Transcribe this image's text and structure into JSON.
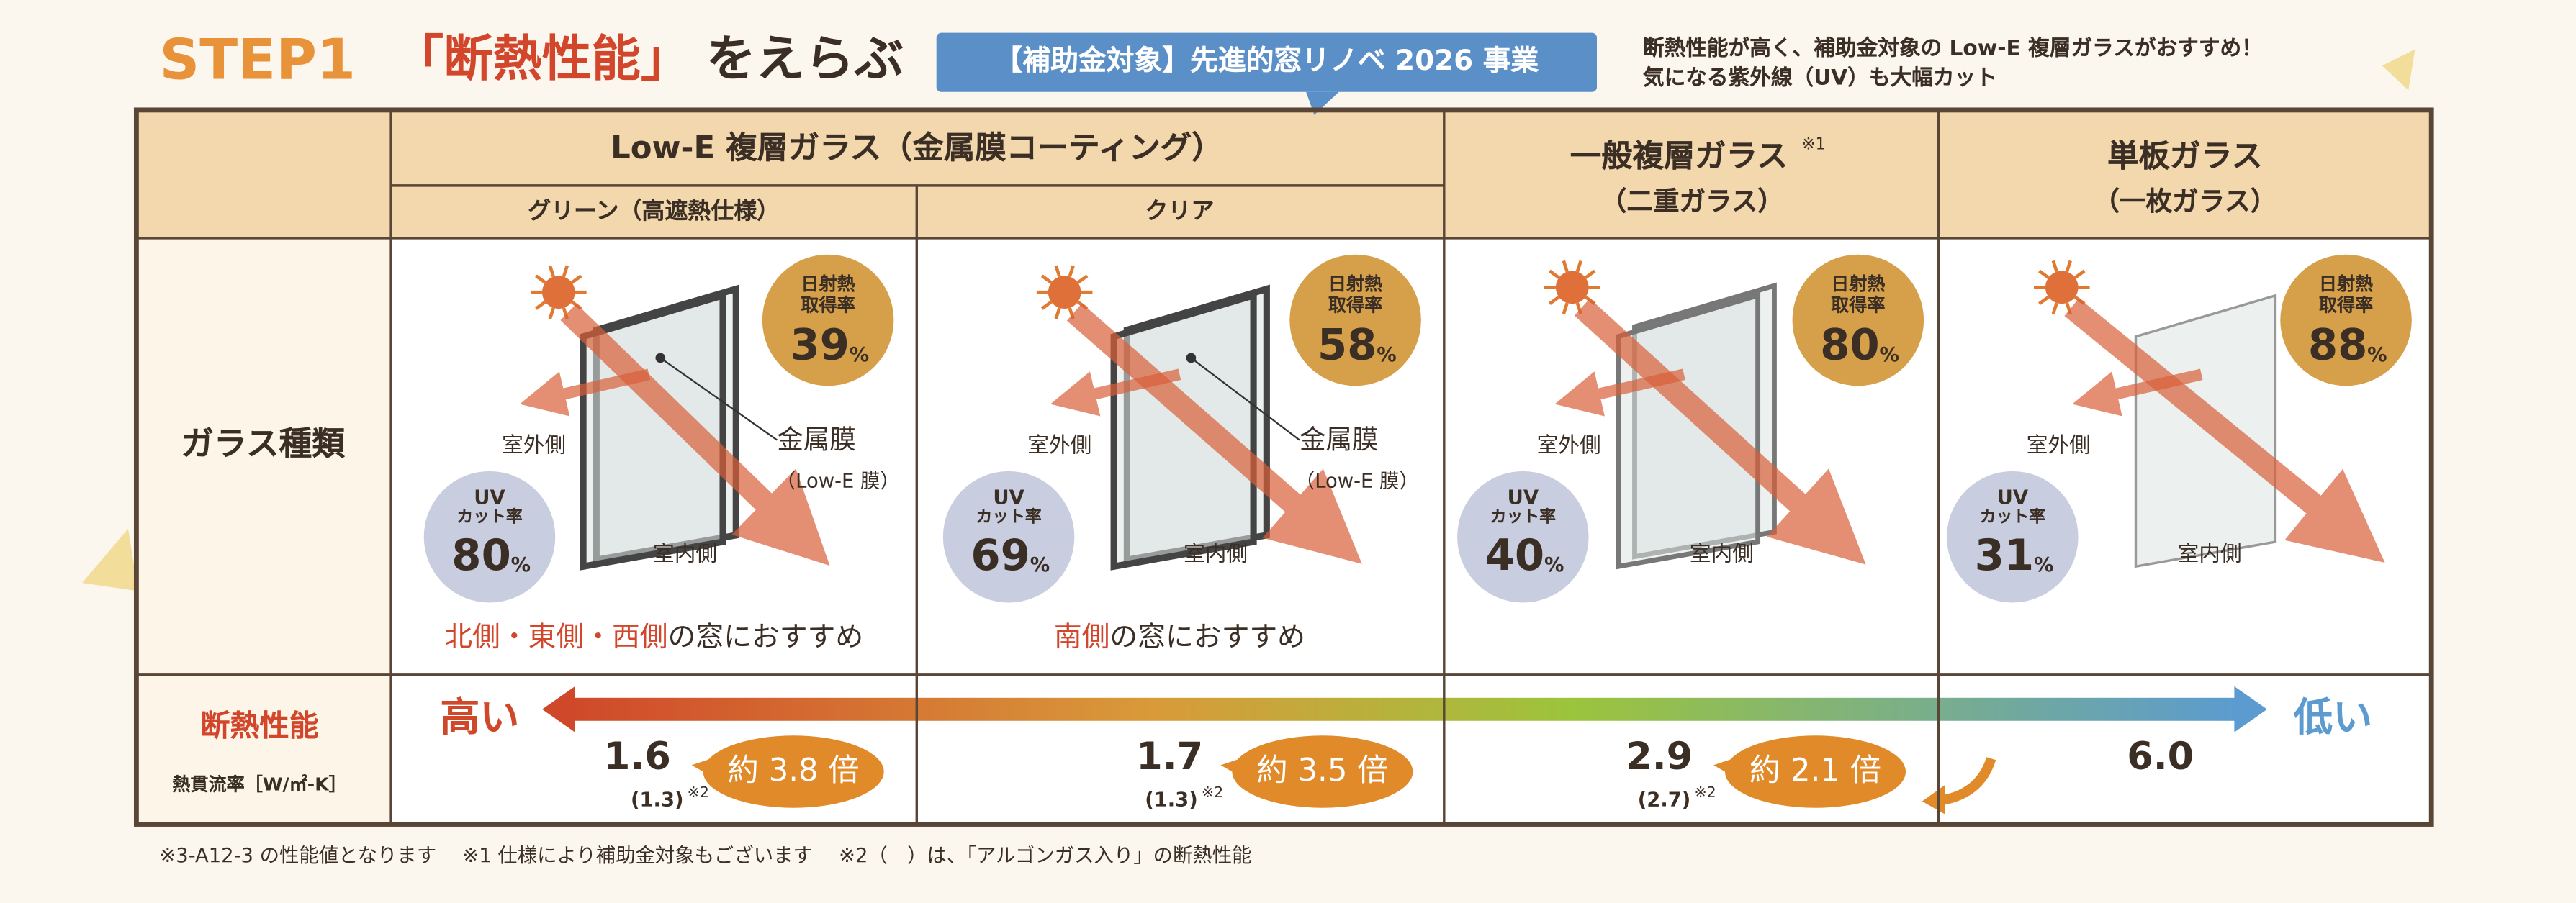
{
  "header": {
    "step": "STEP1",
    "title_quote": "「断熱性能」",
    "title_rest": "をえらぶ",
    "badge": "【補助金対象】先進的窓リノベ 2026 事業",
    "note_lines": [
      "断熱性能が高く、補助金対象の Low-E 複層ガラスがおすすめ！",
      "気になる紫外線（UV）も大幅カット"
    ]
  },
  "table": {
    "groups": [
      {
        "label": "Low-E 複層ガラス（金属膜コーティング）",
        "subheaders": [
          "グリーン（高遮熱仕様）",
          "クリア"
        ]
      },
      {
        "label": "一般複層ガラス",
        "sup": "※1",
        "sub": "（二重ガラス）"
      },
      {
        "label": "単板ガラス",
        "sub": "（一枚ガラス）"
      }
    ],
    "row_labels": {
      "glass": "ガラス種類",
      "perf": "断熱性能",
      "perf_sub": "熱貫流率［W/㎡-K］"
    },
    "scale": {
      "high": "高い",
      "low": "低い"
    },
    "columns": [
      {
        "solar_label": [
          "日射熱",
          "取得率"
        ],
        "solar_value": 39,
        "solar_unit": "%",
        "uv_label": [
          "UV",
          "カット率"
        ],
        "uv_value": 80,
        "uv_unit": "%",
        "outside": "室外側",
        "inside": "室内側",
        "film": "金属膜",
        "film_sub": "（Low-E 膜）",
        "recommend": [
          "北側・東側・西側",
          "の窓におすすめ"
        ],
        "u_value": "1.6",
        "u_argon": "(1.3)",
        "u_note": "※2",
        "ratio": "約 3.8 倍"
      },
      {
        "solar_label": [
          "日射熱",
          "取得率"
        ],
        "solar_value": 58,
        "solar_unit": "%",
        "uv_label": [
          "UV",
          "カット率"
        ],
        "uv_value": 69,
        "uv_unit": "%",
        "outside": "室外側",
        "inside": "室内側",
        "film": "金属膜",
        "film_sub": "（Low-E 膜）",
        "recommend": [
          "南側",
          "の窓におすすめ"
        ],
        "u_value": "1.7",
        "u_argon": "(1.3)",
        "u_note": "※2",
        "ratio": "約 3.5 倍"
      },
      {
        "solar_label": [
          "日射熱",
          "取得率"
        ],
        "solar_value": 80,
        "solar_unit": "%",
        "uv_label": [
          "UV",
          "カット率"
        ],
        "uv_value": 40,
        "uv_unit": "%",
        "outside": "室外側",
        "inside": "室内側",
        "u_value": "2.9",
        "u_argon": "(2.7)",
        "u_note": "※2",
        "ratio": "約 2.1 倍"
      },
      {
        "solar_label": [
          "日射熱",
          "取得率"
        ],
        "solar_value": 88,
        "solar_unit": "%",
        "uv_label": [
          "UV",
          "カット率"
        ],
        "uv_value": 31,
        "uv_unit": "%",
        "outside": "室外側",
        "inside": "室内側",
        "u_value": "6.0"
      }
    ]
  },
  "footnote": "※3-A12-3 の性能値となります　 ※1 仕様により補助金対象もございます　 ※2（　）は、「アルゴンガス入り」の断熱性能"
}
